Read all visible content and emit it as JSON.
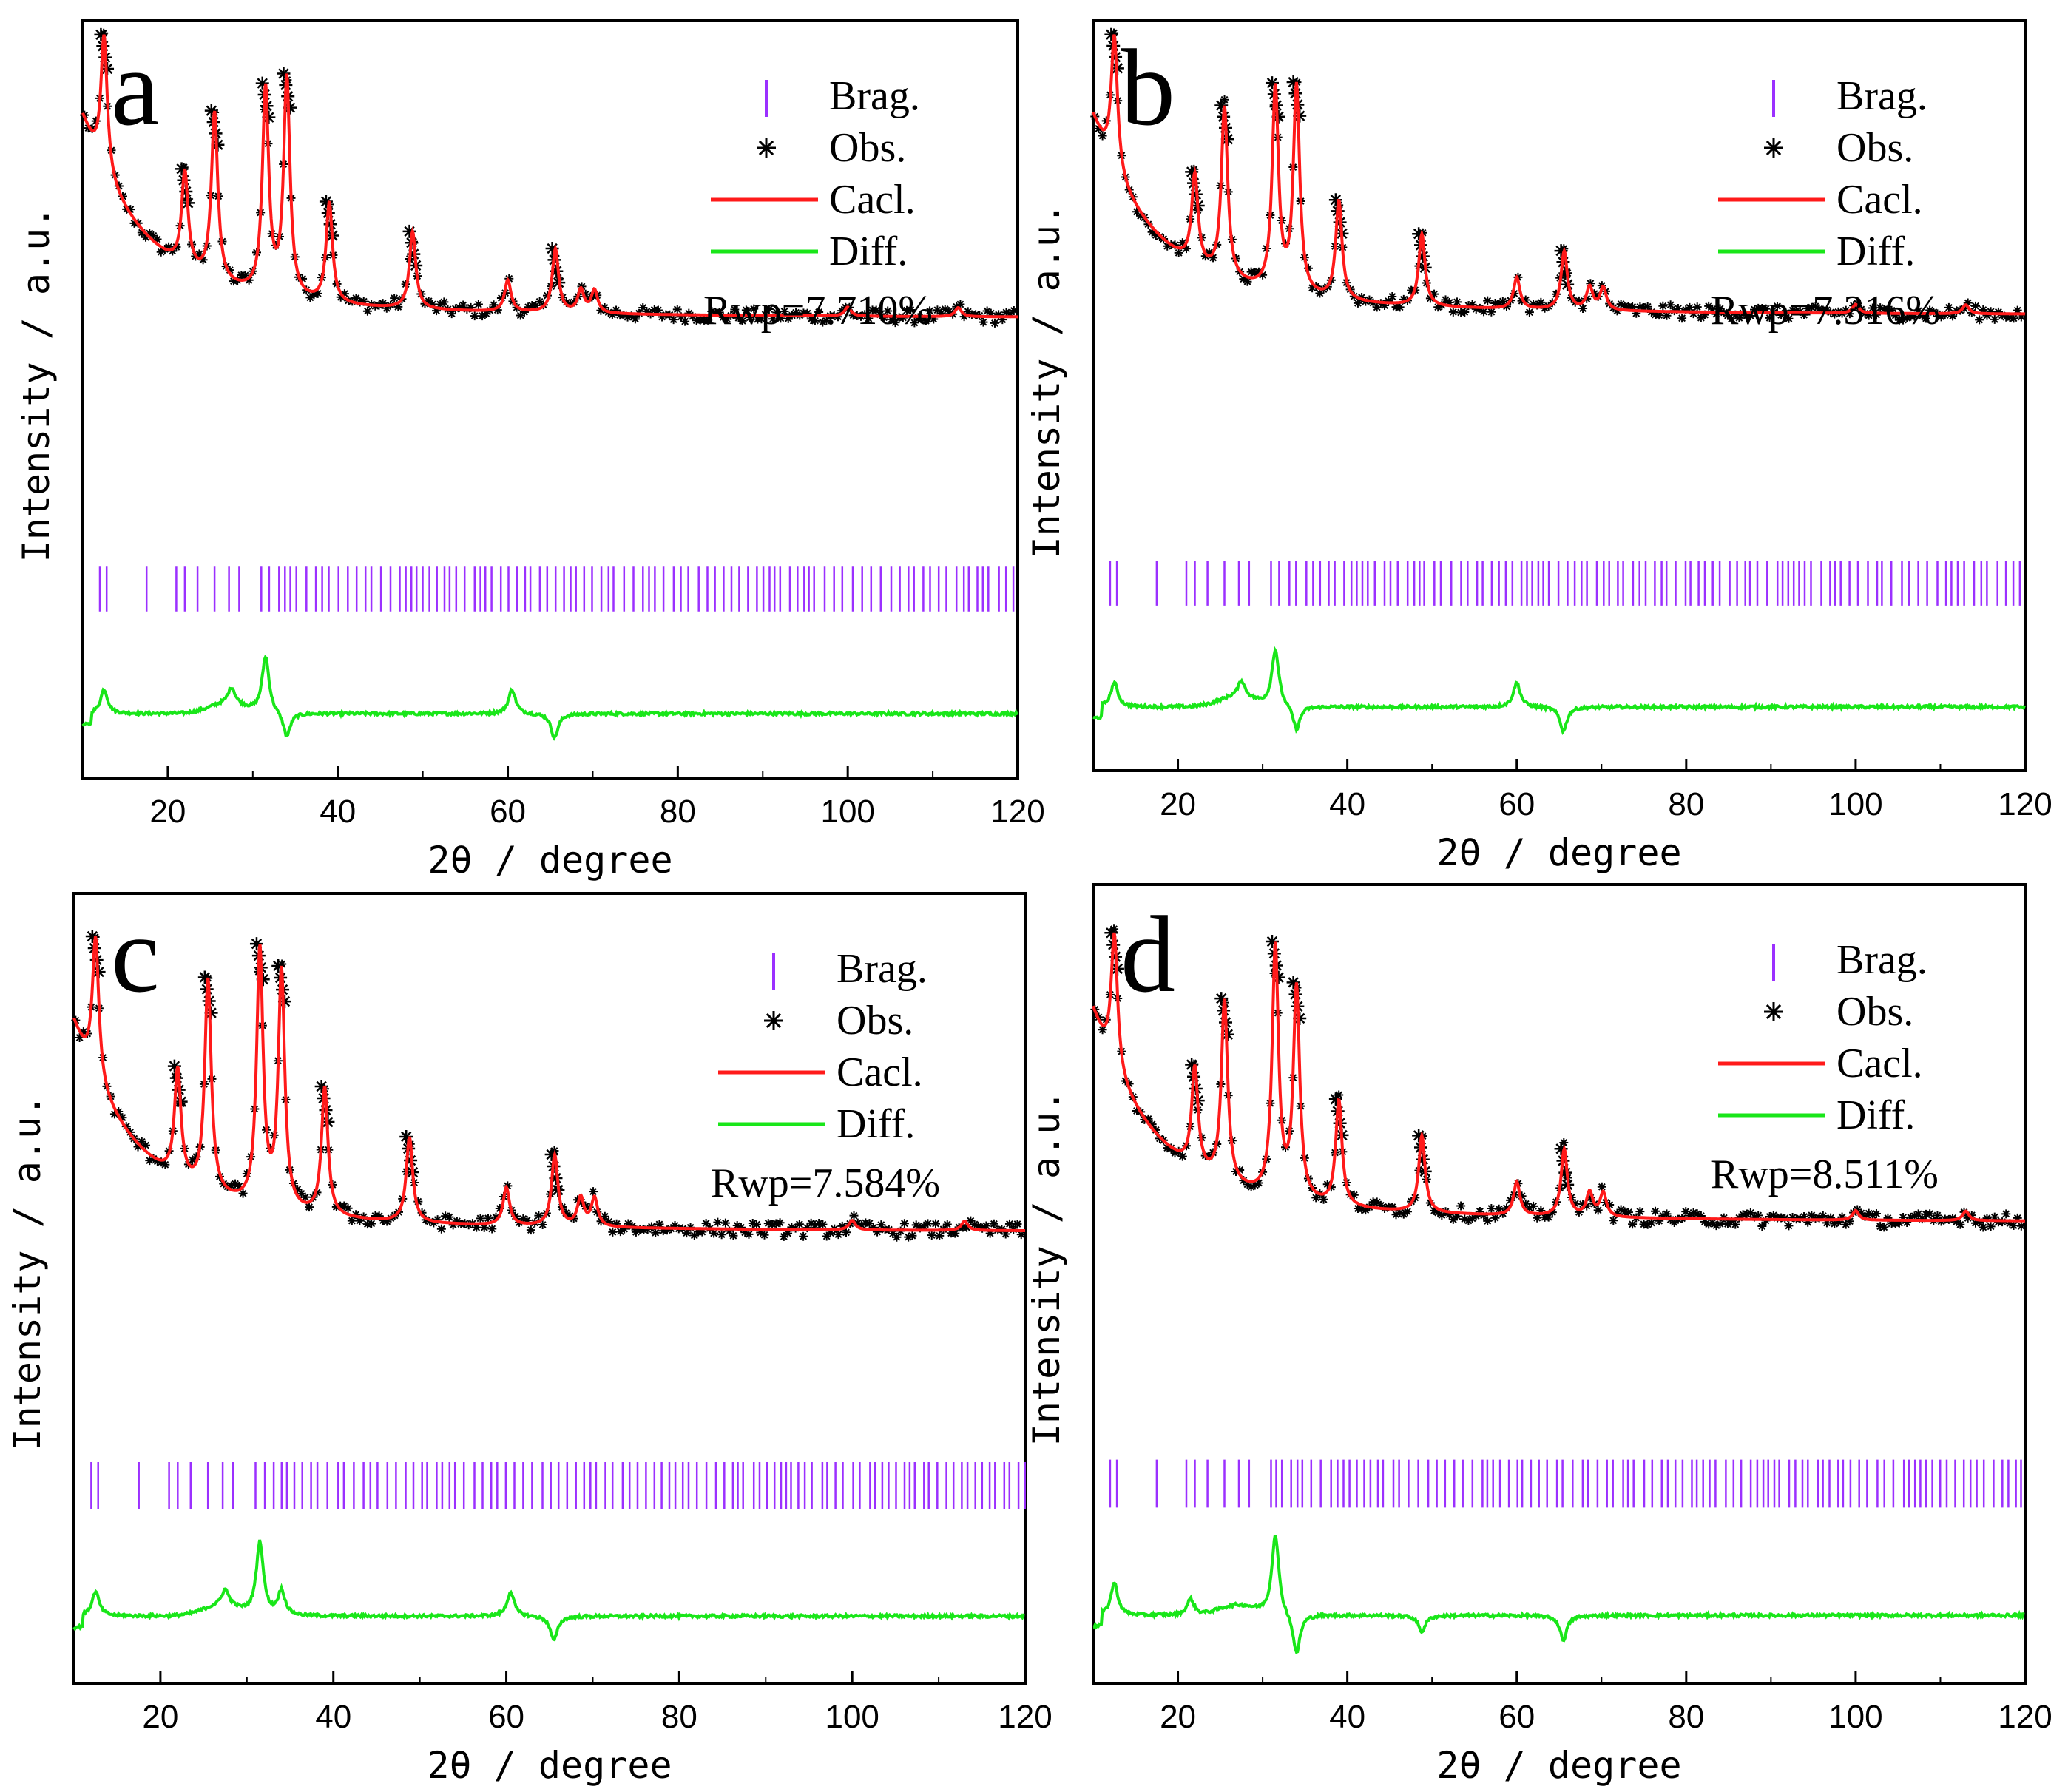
{
  "figure": {
    "colors": {
      "bragg": "#9b30ff",
      "observed": "#000000",
      "calculated": "#ff1a1a",
      "difference": "#19e619",
      "axes": "#000000"
    }
  },
  "chart_data": [
    {
      "type": "line",
      "panel": "a",
      "xlabel": "2θ / degree",
      "ylabel": "Intensity / a.u.",
      "xlim": [
        10,
        120
      ],
      "ylim": [
        0,
        100
      ],
      "xticks": [
        "20",
        "40",
        "60",
        "80",
        "100",
        "120"
      ],
      "legend": [
        "Brag.",
        "Obs.",
        "Cacl.",
        "Diff."
      ],
      "legend_position": "top-right",
      "rwp_label": "Rwp=7.710%",
      "baseline": 38,
      "peaks": [
        {
          "x": 12.5,
          "h": 30
        },
        {
          "x": 22.0,
          "h": 21
        },
        {
          "x": 25.5,
          "h": 37
        },
        {
          "x": 31.5,
          "h": 45
        },
        {
          "x": 34.0,
          "h": 48
        },
        {
          "x": 39.0,
          "h": 22
        },
        {
          "x": 48.8,
          "h": 17
        },
        {
          "x": 60.0,
          "h": 7
        },
        {
          "x": 65.6,
          "h": 14
        },
        {
          "x": 68.6,
          "h": 5
        },
        {
          "x": 70.2,
          "h": 5
        },
        {
          "x": 100.0,
          "h": 2
        },
        {
          "x": 113.0,
          "h": 2
        }
      ],
      "diff_features": [
        {
          "x": 12.5,
          "a": 3
        },
        {
          "x": 27.5,
          "a": 2
        },
        {
          "x": 31.5,
          "a": 7
        },
        {
          "x": 34.0,
          "a": -3
        },
        {
          "x": 60.5,
          "a": 3
        },
        {
          "x": 65.5,
          "a": -3
        }
      ],
      "bragg_min_x": 12
    },
    {
      "type": "line",
      "panel": "b",
      "xlabel": "2θ / degree",
      "ylabel": "Intensity / a.u.",
      "xlim": [
        10,
        120
      ],
      "ylim": [
        0,
        100
      ],
      "xticks": [
        "20",
        "40",
        "60",
        "80",
        "100",
        "120"
      ],
      "legend": [
        "Brag.",
        "Obs.",
        "Cacl.",
        "Diff."
      ],
      "legend_position": "top-right",
      "rwp_label": "Rwp=7.316%",
      "baseline": 38,
      "peaks": [
        {
          "x": 12.5,
          "h": 30
        },
        {
          "x": 22.0,
          "h": 20
        },
        {
          "x": 25.5,
          "h": 38
        },
        {
          "x": 31.5,
          "h": 45
        },
        {
          "x": 34.0,
          "h": 46
        },
        {
          "x": 39.0,
          "h": 22
        },
        {
          "x": 48.8,
          "h": 16
        },
        {
          "x": 60.0,
          "h": 7
        },
        {
          "x": 65.6,
          "h": 13
        },
        {
          "x": 68.6,
          "h": 5
        },
        {
          "x": 70.2,
          "h": 5
        },
        {
          "x": 100.0,
          "h": 2
        },
        {
          "x": 113.0,
          "h": 2
        }
      ],
      "diff_features": [
        {
          "x": 12.5,
          "a": 3
        },
        {
          "x": 27.5,
          "a": 2
        },
        {
          "x": 31.5,
          "a": 7
        },
        {
          "x": 34.0,
          "a": -3
        },
        {
          "x": 60.0,
          "a": 3
        },
        {
          "x": 65.5,
          "a": -3
        }
      ],
      "bragg_min_x": 12
    },
    {
      "type": "line",
      "panel": "c",
      "xlabel": "2θ / degree",
      "ylabel": "Intensity / a.u.",
      "xlim": [
        10,
        120
      ],
      "ylim": [
        0,
        100
      ],
      "xticks": [
        "20",
        "40",
        "60",
        "80",
        "100",
        "120"
      ],
      "legend": [
        "Brag.",
        "Obs.",
        "Cacl.",
        "Diff."
      ],
      "legend_position": "top-right",
      "rwp_label": "Rwp=7.584%",
      "baseline": 32,
      "peaks": [
        {
          "x": 12.5,
          "h": 30
        },
        {
          "x": 22.0,
          "h": 23
        },
        {
          "x": 25.5,
          "h": 45
        },
        {
          "x": 31.5,
          "h": 54
        },
        {
          "x": 34.0,
          "h": 50
        },
        {
          "x": 39.0,
          "h": 27
        },
        {
          "x": 48.8,
          "h": 18
        },
        {
          "x": 60.0,
          "h": 8
        },
        {
          "x": 65.6,
          "h": 15
        },
        {
          "x": 68.6,
          "h": 6
        },
        {
          "x": 70.2,
          "h": 6
        },
        {
          "x": 100.0,
          "h": 2
        },
        {
          "x": 113.0,
          "h": 2
        }
      ],
      "diff_features": [
        {
          "x": 12.5,
          "a": 3
        },
        {
          "x": 27.5,
          "a": 2
        },
        {
          "x": 31.5,
          "a": 9
        },
        {
          "x": 34.0,
          "a": 3
        },
        {
          "x": 60.5,
          "a": 3
        },
        {
          "x": 65.5,
          "a": -3
        }
      ],
      "bragg_min_x": 12
    },
    {
      "type": "line",
      "panel": "d",
      "xlabel": "2θ / degree",
      "ylabel": "Intensity / a.u.",
      "xlim": [
        10,
        120
      ],
      "ylim": [
        0,
        100
      ],
      "xticks": [
        "20",
        "40",
        "60",
        "80",
        "100",
        "120"
      ],
      "legend": [
        "Brag.",
        "Obs.",
        "Cacl.",
        "Diff."
      ],
      "legend_position": "top-right",
      "rwp_label": "Rwp=8.511%",
      "baseline": 33,
      "peaks": [
        {
          "x": 12.5,
          "h": 28
        },
        {
          "x": 22.0,
          "h": 21
        },
        {
          "x": 25.5,
          "h": 38
        },
        {
          "x": 31.5,
          "h": 52
        },
        {
          "x": 34.0,
          "h": 44
        },
        {
          "x": 39.0,
          "h": 22
        },
        {
          "x": 48.8,
          "h": 16
        },
        {
          "x": 60.0,
          "h": 7
        },
        {
          "x": 65.6,
          "h": 14
        },
        {
          "x": 68.6,
          "h": 5
        },
        {
          "x": 70.2,
          "h": 5
        },
        {
          "x": 100.0,
          "h": 2
        },
        {
          "x": 113.0,
          "h": 2
        }
      ],
      "diff_features": [
        {
          "x": 12.5,
          "a": 4
        },
        {
          "x": 21.5,
          "a": 2
        },
        {
          "x": 31.5,
          "a": 10
        },
        {
          "x": 34.0,
          "a": -5
        },
        {
          "x": 48.8,
          "a": -2
        },
        {
          "x": 65.5,
          "a": -3
        }
      ],
      "bragg_min_x": 12
    }
  ]
}
